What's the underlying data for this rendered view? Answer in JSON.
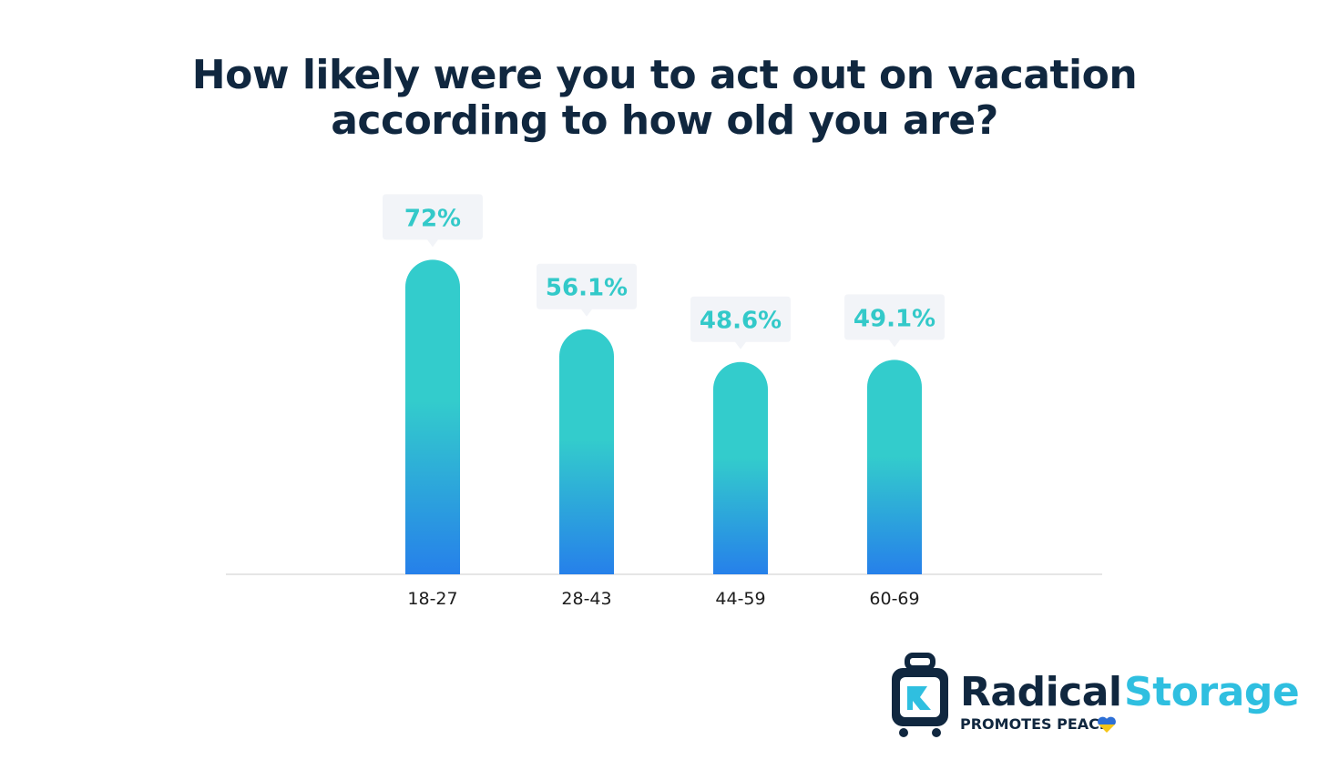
{
  "title": {
    "line1": "How likely were you to act out on vacation",
    "line2": "according to how old you are?"
  },
  "chart_data": {
    "type": "bar",
    "categories": [
      "18-27",
      "28-43",
      "44-59",
      "60-69"
    ],
    "values": [
      72,
      56.1,
      48.6,
      49.1
    ],
    "value_labels": [
      "72%",
      "56.1%",
      "48.6%",
      "49.1%"
    ],
    "xlabel": "",
    "ylabel": "",
    "ylim": [
      0,
      75
    ],
    "grid": false,
    "legend": "none",
    "colors": {
      "bar_top": "#33cccc",
      "bar_bottom": "#2680ea",
      "label_text": "#33c9c9",
      "label_bg": "#f2f4f8",
      "axis": "#e6e6e6"
    }
  },
  "logo": {
    "word1": "Radical",
    "word2": "Storage",
    "tagline": "PROMOTES PEACE",
    "colors": {
      "dark": "#10273f",
      "accent": "#2fbfe0",
      "flag_blue": "#2d6fd6",
      "flag_yellow": "#f5c518"
    },
    "icon": "suitcase-icon"
  }
}
